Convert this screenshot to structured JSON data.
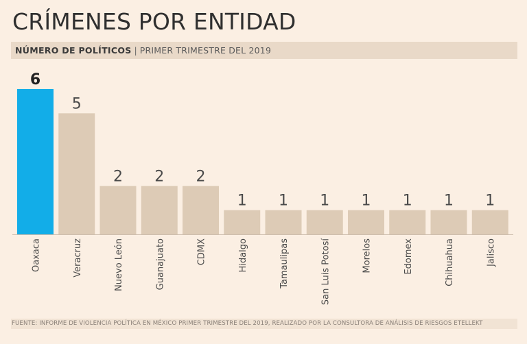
{
  "title": "CRÍMENES POR ENTIDAD",
  "subtitle_bold": "NÚMERO DE POLÍTICOS",
  "subtitle_sep": "|",
  "subtitle_rest": "PRIMER TRIMESTRE DEL 2019",
  "footer": "FUENTE: INFORME DE VIOLENCIA POLÍTICA EN MÉXICO PRIMER TRIMESTRE DEL 2019, REALIZADO POR LA CONSULTORA DE ANÁLISIS DE RIESGOS ETELLEKT",
  "colors": {
    "highlight": "#12ade8",
    "bar": "#ddcbb6",
    "axis": "#cdbdad",
    "text": "#3a3a3a"
  },
  "chart_data": {
    "type": "bar",
    "title": "CRÍMENES POR ENTIDAD",
    "ylabel": "NÚMERO DE POLÍTICOS",
    "xlabel": "",
    "categories": [
      "Oaxaca",
      "Veracruz",
      "Nuevo León",
      "Guanajuato",
      "CDMX",
      "Hidalgo",
      "Tamaulipas",
      "San Luis Potosí",
      "Morelos",
      "Edomex",
      "Chihuahua",
      "Jalisco"
    ],
    "values": [
      6,
      5,
      2,
      2,
      2,
      1,
      1,
      1,
      1,
      1,
      1,
      1
    ],
    "highlight_index": 0,
    "ylim": [
      0,
      6
    ],
    "grid": false,
    "data_labels": true
  }
}
